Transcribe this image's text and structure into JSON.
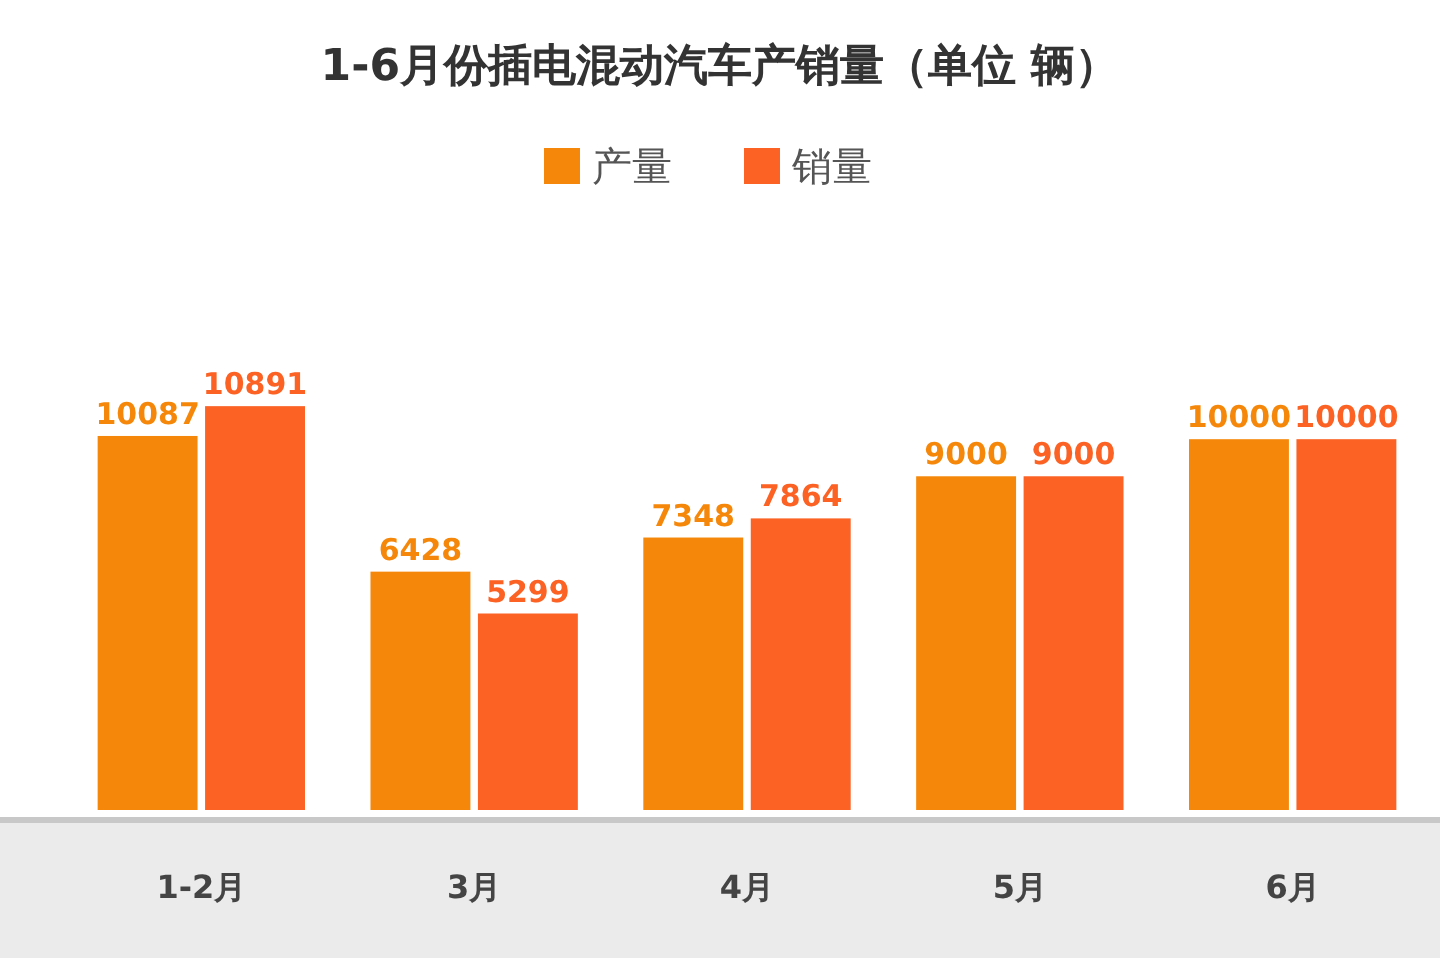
{
  "chart_data": {
    "type": "bar",
    "title": "1-6月份插电混动汽车产销量（单位 辆）",
    "categories": [
      "1-2月",
      "3月",
      "4月",
      "5月",
      "6月"
    ],
    "series": [
      {
        "name": "产量",
        "color": "#f5880a",
        "values": [
          10087,
          6428,
          7348,
          9000,
          10000
        ]
      },
      {
        "name": "销量",
        "color": "#fb6224",
        "values": [
          10891,
          5299,
          7864,
          9000,
          10000
        ]
      }
    ],
    "data_labels": true,
    "legend": "top",
    "grid": false
  }
}
